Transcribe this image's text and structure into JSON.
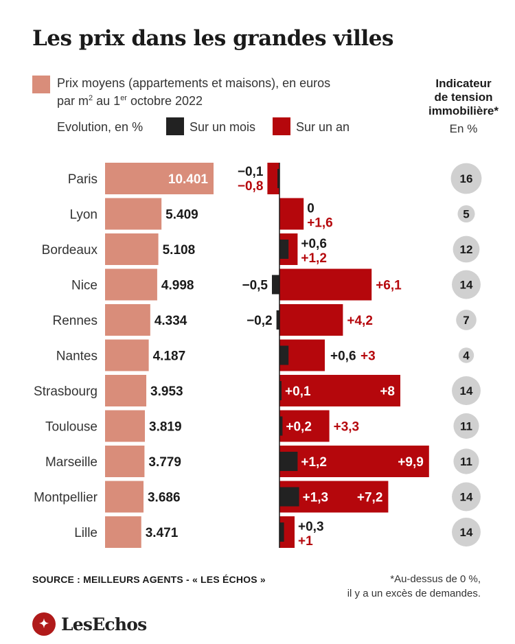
{
  "title": "Les prix dans les grandes villes",
  "legend": {
    "price_line1": "Prix moyens (appartements et maisons), en euros",
    "price_line2_prefix": "par m",
    "price_line2_sup": "2",
    "price_line2_middle": " au 1",
    "price_line2_sup2": "er",
    "price_line2_suffix": " octobre 2022",
    "evolution_label": "Evolution, en %",
    "month_label": "Sur un mois",
    "year_label": "Sur un an"
  },
  "tension": {
    "head_line1": "Indicateur",
    "head_line2": "de tension",
    "head_line3": "immobilière*",
    "unit": "En %"
  },
  "colors": {
    "price": "#d98d7a",
    "month": "#222222",
    "year": "#b5070c",
    "circle": "#d0d0d0"
  },
  "chart_data": {
    "type": "bar",
    "categories": [
      "Paris",
      "Lyon",
      "Bordeaux",
      "Nice",
      "Rennes",
      "Nantes",
      "Strasbourg",
      "Toulouse",
      "Marseille",
      "Montpellier",
      "Lille"
    ],
    "series": [
      {
        "name": "Prix moyens",
        "values": [
          10401,
          5409,
          5108,
          4998,
          4334,
          4187,
          3953,
          3819,
          3779,
          3686,
          3471
        ],
        "labels": [
          "10.401",
          "5.409",
          "5.108",
          "4.998",
          "4.334",
          "4.187",
          "3.953",
          "3.819",
          "3.779",
          "3.686",
          "3.471"
        ]
      },
      {
        "name": "Sur un mois",
        "values": [
          -0.1,
          0,
          0.6,
          -0.5,
          -0.2,
          0.6,
          0.1,
          0.2,
          1.2,
          1.3,
          0.3
        ],
        "labels": [
          "−0,1",
          "0",
          "+0,6",
          "−0,5",
          "−0,2",
          "+0,6",
          "+0,1",
          "+0,2",
          "+1,2",
          "+1,3",
          "+0,3"
        ]
      },
      {
        "name": "Sur un an",
        "values": [
          -0.8,
          1.6,
          1.2,
          6.1,
          4.2,
          3,
          8,
          3.3,
          9.9,
          7.2,
          1
        ],
        "labels": [
          "−0,8",
          "+1,6",
          "+1,2",
          "+6,1",
          "+4,2",
          "+3",
          "+8",
          "+3,3",
          "+9,9",
          "+7,2",
          "+1"
        ]
      },
      {
        "name": "Indicateur de tension immobilière",
        "values": [
          16,
          5,
          12,
          14,
          7,
          4,
          14,
          11,
          11,
          14,
          14
        ],
        "labels": [
          "16",
          "5",
          "12",
          "14",
          "7",
          "4",
          "14",
          "11",
          "11",
          "14",
          "14"
        ]
      }
    ]
  },
  "source": "SOURCE : MEILLEURS AGENTS - « LES ÉCHOS »",
  "footnote_line1": "*Au-dessus de 0 %,",
  "footnote_line2": "il y a un excès de demandes.",
  "logo_text": "LesEchos"
}
